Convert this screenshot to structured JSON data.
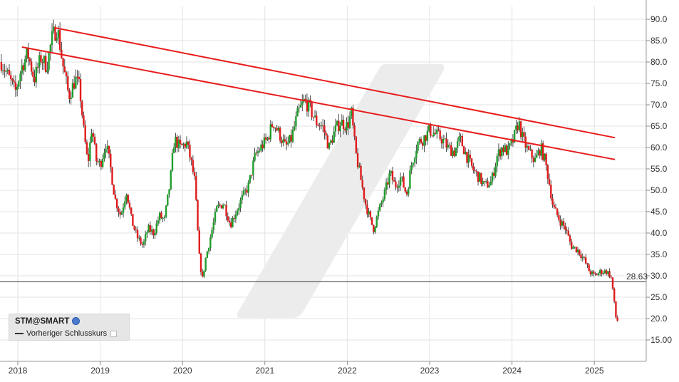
{
  "chart_data": {
    "type": "candlestick",
    "symbol": "STM@SMART",
    "legend_prev_close": "Vorheriger Schlusskurs",
    "last_price_label": "28.63",
    "prev_close_value": 28.63,
    "y_ticks": [
      "90.0",
      "85.0",
      "80.0",
      "75.0",
      "70.0",
      "65.0",
      "60.0",
      "55.0",
      "50.0",
      "45.0",
      "40.0",
      "35.0",
      "30.0",
      "25.0",
      "20.0",
      "15.00"
    ],
    "x_ticks": [
      "2018",
      "2019",
      "2020",
      "2021",
      "2022",
      "2023",
      "2024",
      "2025"
    ],
    "ylim": [
      12,
      93
    ],
    "xlim": [
      2017.8,
      2025.6
    ],
    "grid": true,
    "colors": {
      "up": "#1f9e2c",
      "down": "#e01b1b",
      "trend": "#e81c1c",
      "grid": "#e3e3e3"
    },
    "trendlines": [
      {
        "x": [
          2018.45,
          2025.25
        ],
        "y": [
          88.0,
          62.3
        ]
      },
      {
        "x": [
          2018.05,
          2025.25
        ],
        "y": [
          83.5,
          57.2
        ]
      }
    ],
    "price_path": [
      [
        2017.8,
        80
      ],
      [
        2017.9,
        76
      ],
      [
        2017.97,
        73
      ],
      [
        2018.05,
        79
      ],
      [
        2018.12,
        82
      ],
      [
        2018.2,
        76
      ],
      [
        2018.28,
        81
      ],
      [
        2018.35,
        79
      ],
      [
        2018.42,
        86
      ],
      [
        2018.48,
        88
      ],
      [
        2018.55,
        79
      ],
      [
        2018.62,
        72
      ],
      [
        2018.7,
        76
      ],
      [
        2018.75,
        74
      ],
      [
        2018.8,
        64
      ],
      [
        2018.85,
        56
      ],
      [
        2018.9,
        65
      ],
      [
        2018.95,
        57
      ],
      [
        2019.0,
        56
      ],
      [
        2019.07,
        61
      ],
      [
        2019.12,
        56
      ],
      [
        2019.18,
        48
      ],
      [
        2019.25,
        44
      ],
      [
        2019.32,
        50
      ],
      [
        2019.38,
        43
      ],
      [
        2019.45,
        39
      ],
      [
        2019.52,
        37
      ],
      [
        2019.58,
        41
      ],
      [
        2019.65,
        40
      ],
      [
        2019.72,
        44
      ],
      [
        2019.78,
        43
      ],
      [
        2019.85,
        52
      ],
      [
        2019.9,
        62
      ],
      [
        2019.97,
        60
      ],
      [
        2020.05,
        61
      ],
      [
        2020.1,
        57
      ],
      [
        2020.15,
        52
      ],
      [
        2020.2,
        35
      ],
      [
        2020.24,
        29
      ],
      [
        2020.28,
        34
      ],
      [
        2020.35,
        40
      ],
      [
        2020.42,
        46
      ],
      [
        2020.5,
        47
      ],
      [
        2020.58,
        42
      ],
      [
        2020.65,
        45
      ],
      [
        2020.72,
        48
      ],
      [
        2020.8,
        51
      ],
      [
        2020.88,
        58
      ],
      [
        2020.95,
        60
      ],
      [
        2021.03,
        62
      ],
      [
        2021.1,
        66
      ],
      [
        2021.18,
        63
      ],
      [
        2021.25,
        60
      ],
      [
        2021.32,
        62
      ],
      [
        2021.4,
        68
      ],
      [
        2021.48,
        71
      ],
      [
        2021.55,
        69
      ],
      [
        2021.62,
        66
      ],
      [
        2021.7,
        65
      ],
      [
        2021.78,
        60
      ],
      [
        2021.85,
        64
      ],
      [
        2021.92,
        66
      ],
      [
        2022.0,
        65
      ],
      [
        2022.05,
        68
      ],
      [
        2022.1,
        59
      ],
      [
        2022.17,
        52
      ],
      [
        2022.22,
        47
      ],
      [
        2022.28,
        43
      ],
      [
        2022.32,
        41
      ],
      [
        2022.38,
        45
      ],
      [
        2022.45,
        49
      ],
      [
        2022.52,
        54
      ],
      [
        2022.58,
        51
      ],
      [
        2022.65,
        53
      ],
      [
        2022.72,
        49
      ],
      [
        2022.78,
        56
      ],
      [
        2022.85,
        61
      ],
      [
        2022.92,
        62
      ],
      [
        2023.0,
        64
      ],
      [
        2023.08,
        63
      ],
      [
        2023.15,
        62
      ],
      [
        2023.22,
        60
      ],
      [
        2023.3,
        59
      ],
      [
        2023.37,
        62
      ],
      [
        2023.45,
        58
      ],
      [
        2023.52,
        55
      ],
      [
        2023.6,
        53
      ],
      [
        2023.67,
        51
      ],
      [
        2023.75,
        52
      ],
      [
        2023.82,
        58
      ],
      [
        2023.88,
        60
      ],
      [
        2023.95,
        59
      ],
      [
        2024.02,
        62
      ],
      [
        2024.08,
        66
      ],
      [
        2024.13,
        62
      ],
      [
        2024.2,
        59
      ],
      [
        2024.28,
        57
      ],
      [
        2024.35,
        60
      ],
      [
        2024.4,
        57
      ],
      [
        2024.45,
        52
      ],
      [
        2024.5,
        46
      ],
      [
        2024.58,
        43
      ],
      [
        2024.65,
        41
      ],
      [
        2024.72,
        37
      ],
      [
        2024.8,
        36
      ],
      [
        2024.87,
        34
      ],
      [
        2024.94,
        31
      ],
      [
        2025.0,
        30
      ],
      [
        2025.08,
        31
      ],
      [
        2025.15,
        31
      ],
      [
        2025.2,
        30
      ],
      [
        2025.23,
        26
      ],
      [
        2025.25,
        22
      ],
      [
        2025.27,
        19
      ],
      [
        2025.29,
        20
      ]
    ]
  }
}
